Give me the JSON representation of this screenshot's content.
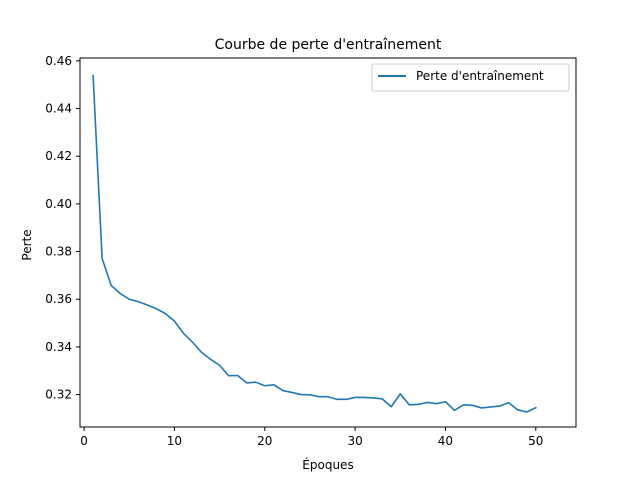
{
  "chart_data": {
    "type": "line",
    "title": "Courbe de perte d'entraînement",
    "xlabel": "Époques",
    "ylabel": "Perte",
    "xlim": [
      -0.45,
      54.45
    ],
    "ylim": [
      0.3064,
      0.4612
    ],
    "xticks": [
      0,
      10,
      20,
      30,
      40,
      50
    ],
    "yticks": [
      0.32,
      0.34,
      0.36,
      0.38,
      0.4,
      0.42,
      0.44,
      0.46
    ],
    "ytick_labels": [
      "0.32",
      "0.34",
      "0.36",
      "0.38",
      "0.40",
      "0.42",
      "0.44",
      "0.46"
    ],
    "grid": false,
    "legend": "top-right",
    "series": [
      {
        "name": "Perte d'entraînement",
        "color": "#1f77b4",
        "x": [
          1,
          2,
          3,
          4,
          5,
          6,
          7,
          8,
          9,
          10,
          11,
          12,
          13,
          14,
          15,
          16,
          17,
          18,
          19,
          20,
          21,
          22,
          23,
          24,
          25,
          26,
          27,
          28,
          29,
          30,
          31,
          32,
          33,
          34,
          35,
          36,
          37,
          38,
          39,
          40,
          41,
          42,
          43,
          44,
          45,
          46,
          47,
          48,
          49,
          50
        ],
        "y": [
          0.4538,
          0.3771,
          0.3658,
          0.3624,
          0.36,
          0.359,
          0.3576,
          0.356,
          0.354,
          0.3508,
          0.3457,
          0.342,
          0.3377,
          0.3348,
          0.3323,
          0.3279,
          0.328,
          0.3249,
          0.3252,
          0.3237,
          0.3241,
          0.3217,
          0.3209,
          0.32,
          0.3199,
          0.3191,
          0.3191,
          0.318,
          0.318,
          0.3188,
          0.3188,
          0.3186,
          0.3182,
          0.3149,
          0.3203,
          0.3157,
          0.3159,
          0.3167,
          0.3162,
          0.317,
          0.3134,
          0.3157,
          0.3155,
          0.3144,
          0.3148,
          0.3152,
          0.3166,
          0.3136,
          0.3127,
          0.3145
        ]
      }
    ]
  }
}
